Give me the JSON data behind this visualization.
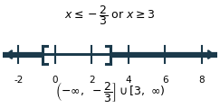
{
  "x_min": -2,
  "x_max": 8,
  "tick_positions": [
    -2,
    0,
    2,
    4,
    6,
    8
  ],
  "point1": -0.6667,
  "point2": 3.0,
  "line_color": "#1B3A4B",
  "title_fontsize": 9,
  "tick_fontsize": 7.5,
  "interval_fontsize": 9,
  "background_color": "#ffffff",
  "figwidth": 2.43,
  "figheight": 1.2,
  "dpi": 100
}
